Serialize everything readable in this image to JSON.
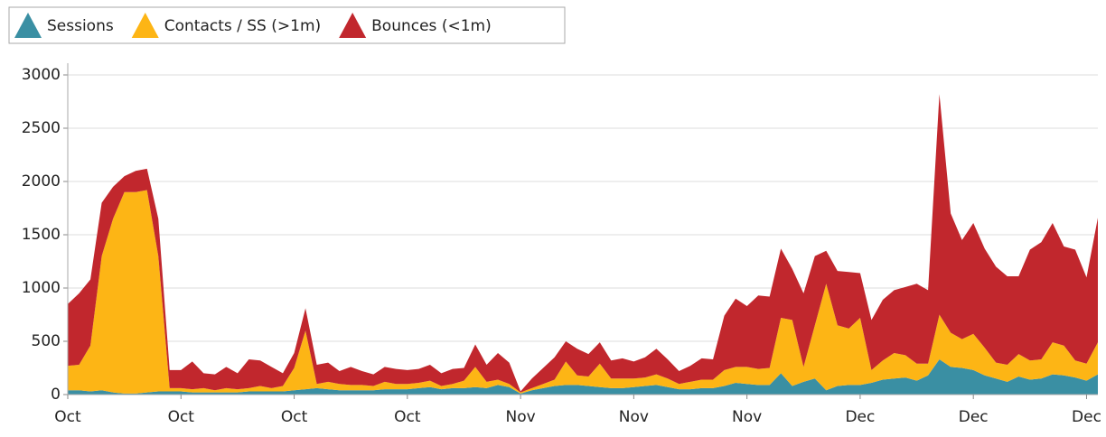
{
  "chart_data": {
    "type": "stacked_area",
    "categories": [
      "Oct",
      null,
      null,
      null,
      null,
      null,
      null,
      null,
      null,
      null,
      "Oct",
      null,
      null,
      null,
      null,
      null,
      null,
      null,
      null,
      null,
      "Oct",
      null,
      null,
      null,
      null,
      null,
      null,
      null,
      null,
      null,
      "Oct",
      null,
      null,
      null,
      null,
      null,
      null,
      null,
      null,
      null,
      "Nov",
      null,
      null,
      null,
      null,
      null,
      null,
      null,
      null,
      null,
      "Nov",
      null,
      null,
      null,
      null,
      null,
      null,
      null,
      null,
      null,
      "Nov",
      null,
      null,
      null,
      null,
      null,
      null,
      null,
      null,
      null,
      "Dec",
      null,
      null,
      null,
      null,
      null,
      null,
      null,
      null,
      null,
      "Dec",
      null,
      null,
      null,
      null,
      null,
      null,
      null,
      null,
      null,
      "Dec",
      null
    ],
    "series": [
      {
        "name": "Sessions",
        "color": "#3a8fa3",
        "values": [
          40,
          40,
          30,
          40,
          20,
          10,
          10,
          20,
          30,
          30,
          30,
          20,
          20,
          20,
          20,
          20,
          30,
          30,
          30,
          30,
          40,
          50,
          60,
          50,
          40,
          40,
          40,
          40,
          50,
          50,
          50,
          60,
          70,
          50,
          60,
          60,
          70,
          60,
          90,
          70,
          10,
          40,
          60,
          80,
          90,
          90,
          80,
          70,
          60,
          60,
          70,
          80,
          90,
          70,
          50,
          50,
          60,
          60,
          80,
          110,
          100,
          90,
          90,
          200,
          80,
          120,
          150,
          40,
          80,
          90,
          90,
          110,
          140,
          150,
          160,
          130,
          180,
          330,
          260,
          250,
          230,
          180,
          150,
          120,
          170,
          140,
          150,
          190,
          180,
          160,
          130,
          190
        ]
      },
      {
        "name": "Contacts / SS (>1m)",
        "color": "#fdb515",
        "values": [
          230,
          240,
          430,
          1260,
          1630,
          1890,
          1890,
          1900,
          1270,
          30,
          30,
          30,
          40,
          20,
          40,
          30,
          30,
          50,
          30,
          50,
          210,
          550,
          40,
          70,
          60,
          50,
          50,
          40,
          70,
          50,
          50,
          50,
          60,
          30,
          40,
          70,
          190,
          60,
          50,
          30,
          10,
          20,
          40,
          60,
          220,
          90,
          90,
          220,
          90,
          90,
          80,
          80,
          100,
          80,
          50,
          70,
          80,
          80,
          150,
          150,
          160,
          150,
          160,
          520,
          620,
          140,
          500,
          1000,
          570,
          530,
          630,
          120,
          180,
          240,
          210,
          160,
          110,
          420,
          320,
          270,
          340,
          260,
          150,
          160,
          210,
          180,
          180,
          300,
          280,
          160,
          160,
          300
        ]
      },
      {
        "name": "Bounces (<1m)",
        "color": "#c1272d",
        "values": [
          580,
          670,
          620,
          500,
          300,
          150,
          200,
          200,
          350,
          170,
          170,
          260,
          140,
          150,
          200,
          150,
          270,
          240,
          200,
          120,
          140,
          210,
          180,
          180,
          120,
          170,
          130,
          110,
          140,
          140,
          130,
          130,
          150,
          120,
          140,
          120,
          210,
          160,
          250,
          200,
          10,
          90,
          150,
          210,
          190,
          250,
          210,
          200,
          170,
          190,
          160,
          190,
          240,
          180,
          120,
          150,
          200,
          190,
          510,
          640,
          570,
          690,
          670,
          650,
          480,
          690,
          650,
          310,
          510,
          530,
          420,
          470,
          570,
          590,
          640,
          750,
          690,
          2070,
          1120,
          930,
          1040,
          930,
          900,
          830,
          730,
          1040,
          1100,
          1120,
          930,
          1040,
          810,
          1170
        ]
      }
    ],
    "ylim": [
      0,
      3000
    ],
    "yticks": [
      0,
      500,
      1000,
      1500,
      2000,
      2500,
      3000
    ],
    "grid": true,
    "legend": "top-left"
  }
}
